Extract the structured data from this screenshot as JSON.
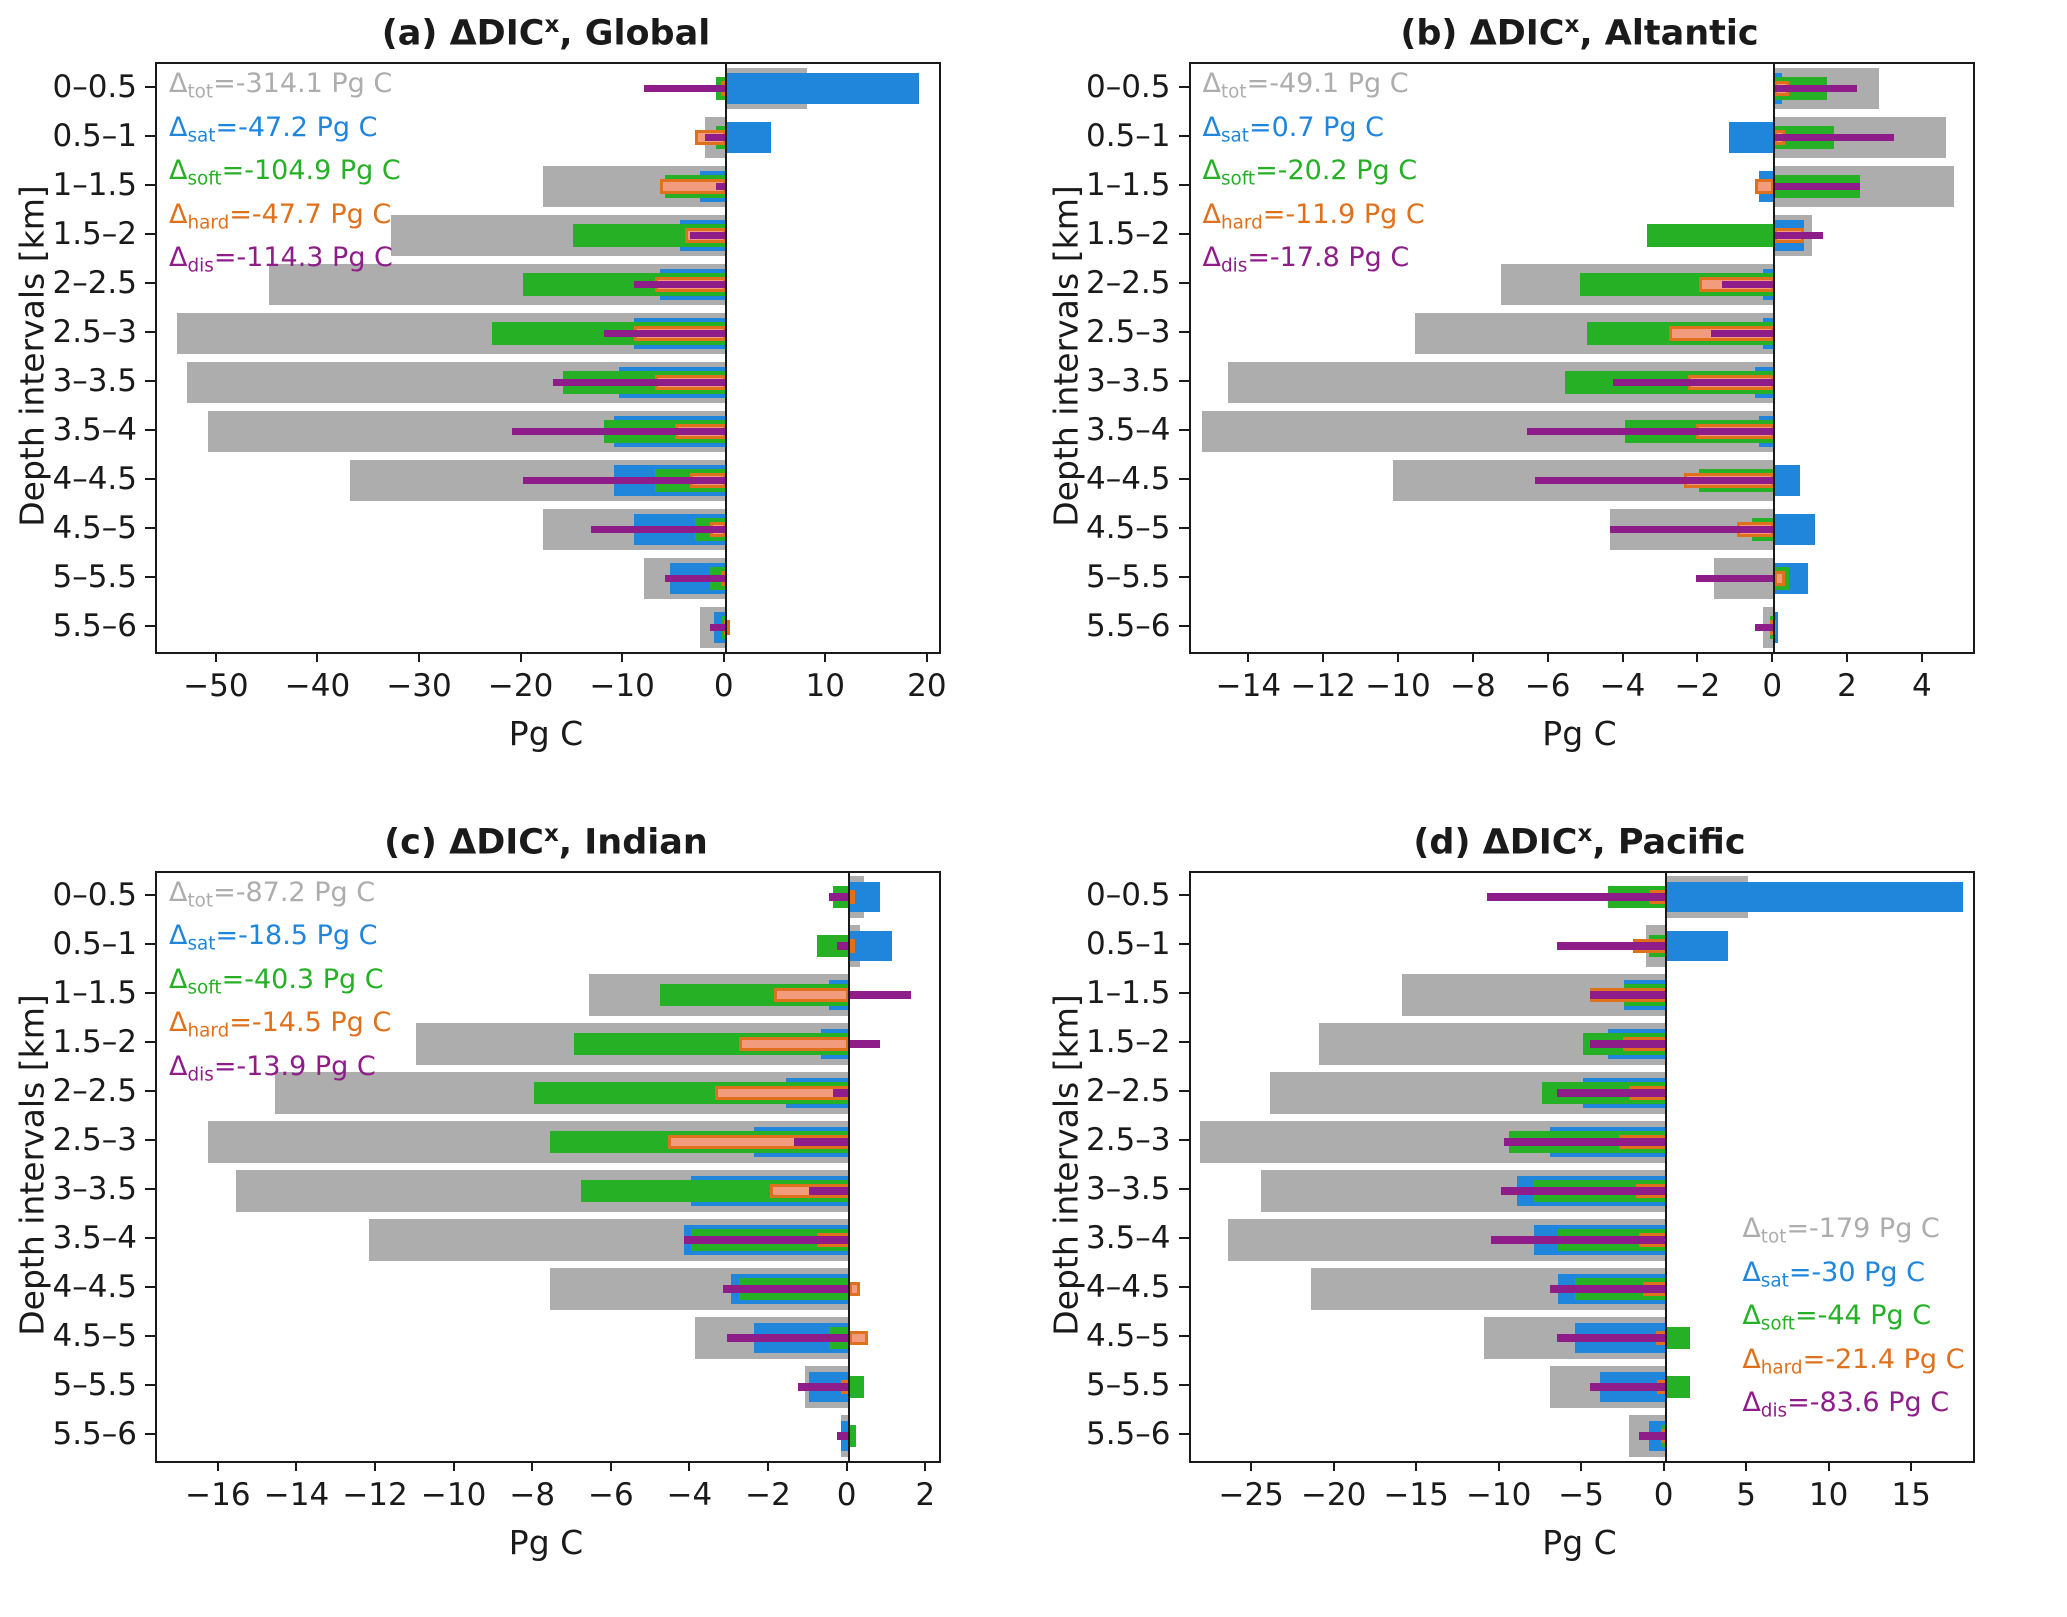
{
  "figure": {
    "background": "#ffffff",
    "text_color": "#1a1a1a",
    "delta_symbol": "Δ",
    "unit": "Pg C",
    "colors": {
      "tot": "#adadad",
      "sat": "#1f86dc",
      "soft": "#26b026",
      "hard": "#e0711c",
      "hard_fill": "#f29b7d",
      "dis": "#8e1d8a"
    },
    "series_order": [
      "tot",
      "sat",
      "soft",
      "hard",
      "dis"
    ]
  },
  "chart_data": [
    {
      "id": "a",
      "type": "bar",
      "orientation": "horizontal",
      "title": {
        "index": "(a)",
        "symbol": "ΔDIC",
        "sup": "x",
        "region": ", Global"
      },
      "xlabel": "Pg C",
      "ylabel": "Depth intervals [km]",
      "xlim": [
        -56,
        21
      ],
      "xticks": [
        -50,
        -40,
        -30,
        -20,
        -10,
        0,
        10,
        20
      ],
      "legend_position": "top-left",
      "categories": [
        "0–0.5",
        "0.5–1",
        "1–1.5",
        "1.5–2",
        "2–2.5",
        "2.5–3",
        "3–3.5",
        "3.5–4",
        "4–4.5",
        "4.5–5",
        "5–5.5",
        "5.5–6"
      ],
      "series": [
        {
          "name": "tot",
          "sub": "tot",
          "annotation": "=-314.1 Pg C",
          "values": [
            8,
            -2,
            -18,
            -33,
            -45,
            -54,
            -53,
            -51,
            -37,
            -18,
            -8,
            -2.5
          ]
        },
        {
          "name": "sat",
          "sub": "sat",
          "annotation": "=-47.2 Pg C",
          "values": [
            19,
            4.5,
            -2.5,
            -4.5,
            -6.5,
            -9,
            -10.5,
            -11,
            -11,
            -9,
            -5.5,
            -1.2
          ]
        },
        {
          "name": "soft",
          "sub": "soft",
          "annotation": "=-104.9 Pg C",
          "values": [
            -1,
            -1,
            -6,
            -15,
            -20,
            -23,
            -16,
            -12,
            -7,
            -3,
            -1.5,
            -0.4
          ]
        },
        {
          "name": "hard",
          "sub": "hard",
          "annotation": "=-47.7 Pg C",
          "values": [
            -0.5,
            -3,
            -6.5,
            -4,
            -7,
            -9,
            -7,
            -5,
            -3.5,
            -1.5,
            -0.5,
            -0.2
          ]
        },
        {
          "name": "dis",
          "sub": "dis",
          "annotation": "=-114.3 Pg C",
          "values": [
            -8,
            -2,
            -1,
            -3.5,
            -9,
            -12,
            -17,
            -21,
            -20,
            -13.3,
            -6,
            -1.5
          ]
        }
      ]
    },
    {
      "id": "b",
      "type": "bar",
      "orientation": "horizontal",
      "title": {
        "index": "(b)",
        "symbol": "ΔDIC",
        "sup": "x",
        "region": ", Altantic"
      },
      "xlabel": "Pg C",
      "ylabel": "Depth intervals [km]",
      "xlim": [
        -15.6,
        5.3
      ],
      "xticks": [
        -14,
        -12,
        -10,
        -8,
        -6,
        -4,
        -2,
        0,
        2,
        4
      ],
      "legend_position": "top-left",
      "categories": [
        "0–0.5",
        "0.5–1",
        "1–1.5",
        "1.5–2",
        "2–2.5",
        "2.5–3",
        "3–3.5",
        "3.5–4",
        "4–4.5",
        "4.5–5",
        "5–5.5",
        "5.5–6"
      ],
      "series": [
        {
          "name": "tot",
          "sub": "tot",
          "annotation": "=-49.1 Pg C",
          "values": [
            2.8,
            4.6,
            4.8,
            1.0,
            -7.3,
            -9.6,
            -14.6,
            -15.3,
            -10.2,
            -4.4,
            -1.6,
            -0.3
          ]
        },
        {
          "name": "sat",
          "sub": "sat",
          "annotation": "=0.7 Pg C",
          "values": [
            0.2,
            -1.2,
            -0.4,
            0.8,
            -0.3,
            -0.3,
            -0.5,
            -0.4,
            0.7,
            1.1,
            0.9,
            0.1
          ]
        },
        {
          "name": "soft",
          "sub": "soft",
          "annotation": "=-20.2 Pg C",
          "values": [
            1.4,
            1.6,
            2.3,
            -3.4,
            -5.2,
            -5.0,
            -5.6,
            -4.0,
            -2.0,
            -0.6,
            0.4,
            -0.1
          ]
        },
        {
          "name": "hard",
          "sub": "hard",
          "annotation": "=-11.9 Pg C",
          "values": [
            0.4,
            0.3,
            -0.5,
            0.8,
            -2.0,
            -2.8,
            -2.3,
            -2.1,
            -2.4,
            -1.0,
            0.3,
            -0.1
          ]
        },
        {
          "name": "dis",
          "sub": "dis",
          "annotation": "=-17.8 Pg C",
          "values": [
            2.2,
            3.2,
            2.3,
            1.3,
            -1.4,
            -1.7,
            -4.3,
            -6.6,
            -6.4,
            -4.4,
            -2.1,
            -0.5
          ]
        }
      ]
    },
    {
      "id": "c",
      "type": "bar",
      "orientation": "horizontal",
      "title": {
        "index": "(c)",
        "symbol": "ΔDIC",
        "sup": "x",
        "region": ", Indian"
      },
      "xlabel": "Pg C",
      "ylabel": "Depth intervals [km]",
      "xlim": [
        -17.6,
        2.3
      ],
      "xticks": [
        -16,
        -14,
        -12,
        -10,
        -8,
        -6,
        -4,
        -2,
        0,
        2
      ],
      "legend_position": "top-left",
      "categories": [
        "0–0.5",
        "0.5–1",
        "1–1.5",
        "1.5–2",
        "2–2.5",
        "2.5–3",
        "3–3.5",
        "3.5–4",
        "4–4.5",
        "4.5–5",
        "5–5.5",
        "5.5–6"
      ],
      "series": [
        {
          "name": "tot",
          "sub": "tot",
          "annotation": "=-87.2 Pg C",
          "values": [
            0.4,
            0.3,
            -6.6,
            -11.0,
            -14.6,
            -16.3,
            -15.6,
            -12.2,
            -7.6,
            -3.9,
            -1.1,
            -0.2
          ]
        },
        {
          "name": "sat",
          "sub": "sat",
          "annotation": "=-18.5 Pg C",
          "values": [
            0.8,
            1.1,
            -0.5,
            -0.7,
            -1.6,
            -2.4,
            -4.0,
            -4.2,
            -3.0,
            -2.4,
            -1.0,
            -0.2
          ]
        },
        {
          "name": "soft",
          "sub": "soft",
          "annotation": "=-40.3 Pg C",
          "values": [
            -0.4,
            -0.8,
            -4.8,
            -7.0,
            -8.0,
            -7.6,
            -6.8,
            -4.0,
            -2.8,
            -0.5,
            0.4,
            0.2
          ]
        },
        {
          "name": "hard",
          "sub": "hard",
          "annotation": "=-14.5 Pg C",
          "values": [
            0.1,
            0.1,
            -1.9,
            -2.8,
            -3.4,
            -4.6,
            -2.0,
            -0.8,
            0.3,
            0.5,
            -0.2,
            0
          ]
        },
        {
          "name": "dis",
          "sub": "dis",
          "annotation": "=-13.9 Pg C",
          "values": [
            -0.5,
            -0.3,
            1.6,
            0.8,
            -0.4,
            -1.4,
            -1.0,
            -4.2,
            -3.2,
            -3.1,
            -1.3,
            -0.3
          ]
        }
      ]
    },
    {
      "id": "d",
      "type": "bar",
      "orientation": "horizontal",
      "title": {
        "index": "(d)",
        "symbol": "ΔDIC",
        "sup": "x",
        "region": ", Pacific"
      },
      "xlabel": "Pg C",
      "ylabel": "Depth intervals [km]",
      "xlim": [
        -28.8,
        18.6
      ],
      "xticks": [
        -25,
        -20,
        -15,
        -10,
        -5,
        0,
        5,
        10,
        15
      ],
      "legend_position": "bottom-right",
      "categories": [
        "0–0.5",
        "0.5–1",
        "1–1.5",
        "1.5–2",
        "2–2.5",
        "2.5–3",
        "3–3.5",
        "3.5–4",
        "4–4.5",
        "4.5–5",
        "5–5.5",
        "5.5–6"
      ],
      "series": [
        {
          "name": "tot",
          "sub": "tot",
          "annotation": "=-179 Pg C",
          "values": [
            5,
            -1.2,
            -16,
            -21,
            -24,
            -28.2,
            -24.5,
            -26.5,
            -21.5,
            -11,
            -7,
            -2.2
          ]
        },
        {
          "name": "sat",
          "sub": "sat",
          "annotation": "=-30 Pg C",
          "values": [
            18,
            3.8,
            -2.5,
            -3.5,
            -5,
            -7,
            -9,
            -8,
            -6.5,
            -5.5,
            -4,
            -1
          ]
        },
        {
          "name": "soft",
          "sub": "soft",
          "annotation": "=-44 Pg C",
          "values": [
            -3.5,
            -1.0,
            -2.5,
            -5.0,
            -7.5,
            -9.5,
            -8.0,
            -6.5,
            -5.5,
            1.5,
            1.5,
            -0.3
          ]
        },
        {
          "name": "hard",
          "sub": "hard",
          "annotation": "=-21.4 Pg C",
          "values": [
            -1.0,
            -2.0,
            -4.6,
            -2.6,
            -2.2,
            -2.8,
            -1.8,
            -1.6,
            -1.4,
            -0.6,
            -0.5,
            -0.3
          ]
        },
        {
          "name": "dis",
          "sub": "dis",
          "annotation": "=-83.6 Pg C",
          "values": [
            -10.8,
            -6.6,
            -4.6,
            -4.6,
            -6.6,
            -9.8,
            -10.0,
            -10.6,
            -7.0,
            -6.6,
            -4.6,
            -1.6
          ]
        }
      ]
    }
  ]
}
